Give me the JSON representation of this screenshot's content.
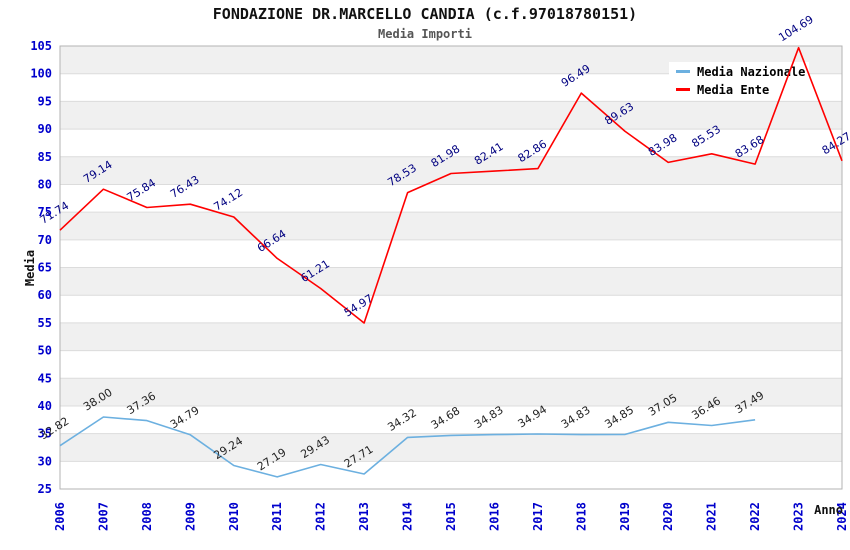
{
  "chart": {
    "title": "FONDAZIONE DR.MARCELLO CANDIA (c.f.97018780151)",
    "subtitle": "Media Importi"
  },
  "chart_data": {
    "type": "line",
    "title": "FONDAZIONE DR.MARCELLO CANDIA (c.f.97018780151)",
    "subtitle": "Media Importi",
    "xlabel": "Anno",
    "ylabel": "Media",
    "x": [
      2006,
      2007,
      2008,
      2009,
      2010,
      2011,
      2012,
      2013,
      2014,
      2015,
      2016,
      2017,
      2018,
      2019,
      2020,
      2021,
      2022,
      2023,
      2024
    ],
    "series": [
      {
        "name": "Media Nazionale",
        "color": "#6cb0e0",
        "label_color": "#222222",
        "values": [
          32.82,
          38.0,
          37.36,
          34.79,
          29.24,
          27.19,
          29.43,
          27.71,
          34.32,
          34.68,
          34.83,
          34.94,
          34.83,
          34.85,
          37.05,
          36.46,
          37.49,
          null,
          null
        ]
      },
      {
        "name": "Media Ente",
        "color": "#ff0000",
        "label_color": "#000080",
        "values": [
          71.74,
          79.14,
          75.84,
          76.43,
          74.12,
          66.64,
          61.21,
          54.97,
          78.53,
          81.98,
          82.41,
          82.86,
          96.49,
          89.63,
          83.98,
          85.53,
          83.68,
          104.69,
          84.27
        ]
      }
    ],
    "ylim": [
      25,
      105
    ],
    "ytick_step": 5,
    "grid": true,
    "legend_position": "top-right",
    "colors": {
      "axis_text": "#0000cc",
      "band": "#f0f0f0",
      "gridline": "#dcdcdc",
      "plot_border": "#b3b3b3",
      "legend_bg": "#ffffff"
    }
  }
}
